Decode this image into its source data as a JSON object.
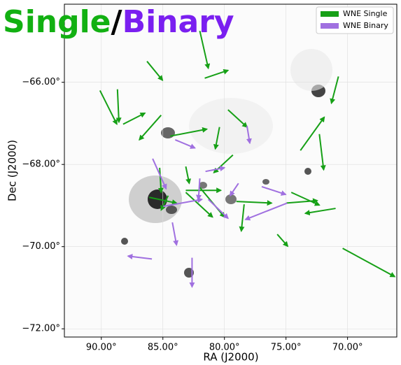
{
  "chart_data": {
    "type": "quiver",
    "overlay_text": [
      "Single",
      "/",
      "Binary"
    ],
    "overlay_colors": [
      "#12b012",
      "#000000",
      "#7a1ff0"
    ],
    "xlabel": "RA (J2000)",
    "ylabel": "Dec (J2000)",
    "xlim": [
      93.0,
      66.0
    ],
    "ylim": [
      -72.2,
      -64.1
    ],
    "xticks": [
      {
        "value": 90,
        "label": "90.00°"
      },
      {
        "value": 85,
        "label": "85.00°"
      },
      {
        "value": 80,
        "label": "80.00°"
      },
      {
        "value": 75,
        "label": "75.00°"
      },
      {
        "value": 70,
        "label": "70.00°"
      }
    ],
    "yticks": [
      {
        "value": -66,
        "label": "−66.00°"
      },
      {
        "value": -68,
        "label": "−68.00°"
      },
      {
        "value": -70,
        "label": "−70.00°"
      },
      {
        "value": -72,
        "label": "−72.00°"
      }
    ],
    "grid": true,
    "legend": "upper right",
    "series": [
      {
        "name": "WNE Single",
        "color": "#16a016",
        "x": [
          90.11,
          88.69,
          88.23,
          85.14,
          86.29,
          82.0,
          81.6,
          79.71,
          84.4,
          80.4,
          79.31,
          85.26,
          83.14,
          83.14,
          82.0,
          79.03,
          78.4,
          73.83,
          72.29,
          70.74,
          70.4,
          75.71,
          74.97,
          74.57,
          70.97,
          86.11,
          84.57,
          83.14
        ],
        "y": [
          -66.2,
          -66.17,
          -67.02,
          -66.8,
          -65.49,
          -64.75,
          -65.9,
          -66.67,
          -67.31,
          -67.09,
          -67.77,
          -68.08,
          -68.05,
          -68.63,
          -68.56,
          -68.9,
          -68.97,
          -67.66,
          -67.26,
          -65.86,
          -70.04,
          -69.7,
          -68.94,
          -68.68,
          -69.07,
          -68.8,
          -68.76,
          -68.68
        ],
        "x_end": [
          88.74,
          88.57,
          86.46,
          86.91,
          85.03,
          81.31,
          79.71,
          78.17,
          81.43,
          80.74,
          80.86,
          85.14,
          82.86,
          80.29,
          80.0,
          76.17,
          78.63,
          71.89,
          71.94,
          71.31,
          66.17,
          74.86,
          72.46,
          72.29,
          73.43,
          83.89,
          85.14,
          80.97
        ],
        "y_end": [
          -67.02,
          -66.97,
          -66.75,
          -67.4,
          -65.95,
          -65.66,
          -65.71,
          -67.09,
          -67.14,
          -67.62,
          -68.2,
          -68.68,
          -68.46,
          -68.63,
          -69.28,
          -68.94,
          -69.62,
          -66.85,
          -68.13,
          -66.51,
          -70.73,
          -69.99,
          -68.88,
          -68.99,
          -69.19,
          -68.94,
          -69.11,
          -69.28
        ]
      },
      {
        "name": "WNE Binary",
        "color": "#a070e0",
        "x": [
          78.17,
          84.0,
          81.54,
          85.83,
          84.97,
          81.31,
          74.91,
          76.97,
          82.63,
          85.89,
          84.23,
          78.86,
          82.0
        ],
        "y": [
          -67.06,
          -67.4,
          -68.17,
          -67.86,
          -69.02,
          -68.85,
          -68.94,
          -68.54,
          -70.27,
          -70.3,
          -69.41,
          -68.46,
          -68.34
        ],
        "x_end": [
          77.94,
          82.4,
          80.0,
          84.74,
          81.83,
          79.71,
          78.29,
          75.03,
          82.63,
          87.83,
          83.89,
          79.54,
          82.11
        ],
        "y_end": [
          -67.48,
          -67.6,
          -68.08,
          -68.59,
          -68.85,
          -69.31,
          -69.34,
          -68.73,
          -70.98,
          -70.23,
          -69.96,
          -68.76,
          -68.85
        ]
      }
    ]
  }
}
